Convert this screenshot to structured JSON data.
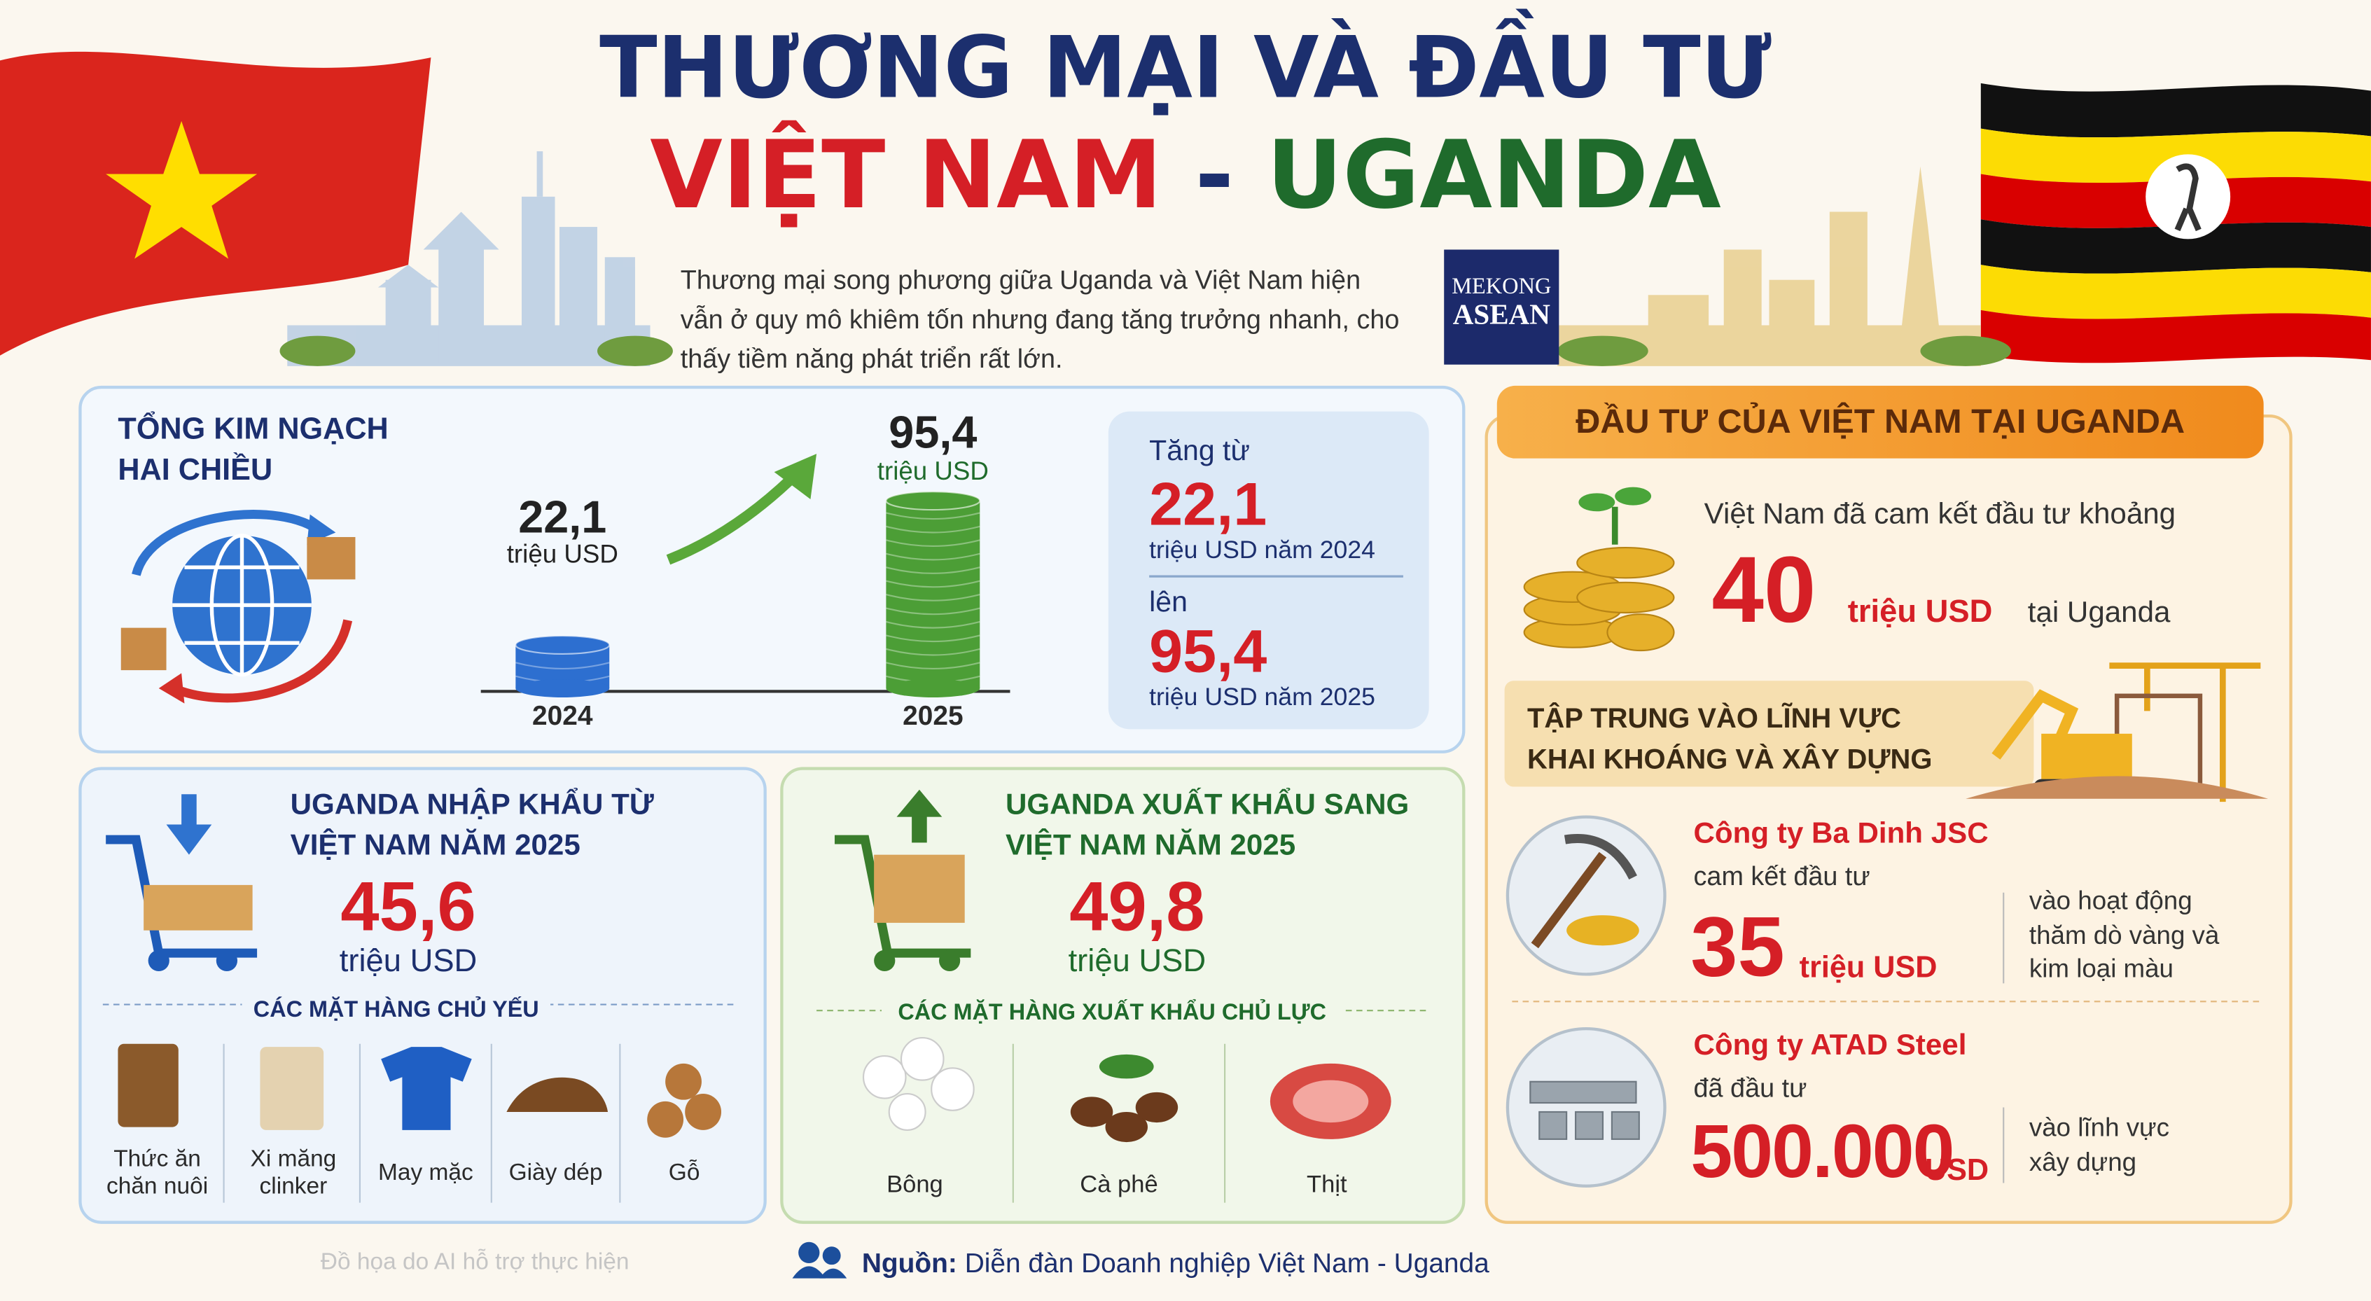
{
  "header": {
    "title_line1": "THƯƠNG MẠI VÀ ĐẦU TƯ",
    "title_vn": "VIỆT NAM",
    "title_sep": "-",
    "title_ug": "UGANDA",
    "intro": "Thương mại song phương giữa Uganda và Việt Nam hiện vẫn ở quy mô khiêm tốn nhưng đang tăng trưởng nhanh, cho thấy tiềm năng phát triển rất lớn.",
    "logo_top": "MEKONG",
    "logo_bottom": "ASEAN"
  },
  "total_trade": {
    "title": "TỔNG KIM NGẠCH HAI CHIỀU",
    "years": [
      "2024",
      "2025"
    ],
    "values": [
      22.1,
      95.4
    ],
    "value_labels": [
      "22,1",
      "95,4"
    ],
    "colors": [
      "#2d6fd0",
      "#4c9e36"
    ],
    "unit": "triệu USD",
    "summary": {
      "from_label": "Tăng từ",
      "from_value": "22,1",
      "from_unit": "triệu USD năm 2024",
      "to_label": "lên",
      "to_value": "95,4",
      "to_unit": "triệu USD năm 2025"
    }
  },
  "imports": {
    "title": "UGANDA NHẬP KHẨU TỪ VIỆT NAM NĂM 2025",
    "value": "45,6",
    "unit": "triệu USD",
    "items_title": "CÁC MẶT HÀNG CHỦ YẾU",
    "items": [
      "Thức ăn chăn nuôi",
      "Xi măng clinker",
      "May mặc",
      "Giày dép",
      "Gỗ"
    ]
  },
  "exports": {
    "title": "UGANDA XUẤT KHẨU SANG VIỆT NAM NĂM 2025",
    "value": "49,8",
    "unit": "triệu USD",
    "items_title": "CÁC MẶT HÀNG XUẤT KHẨU CHỦ LỰC",
    "items": [
      "Bông",
      "Cà phê",
      "Thịt"
    ]
  },
  "investment": {
    "title": "ĐẦU TƯ CỦA VIỆT NAM TẠI UGANDA",
    "commit_text": "Việt Nam đã cam kết đầu tư khoảng",
    "commit_value": "40",
    "commit_unit": "triệu USD",
    "commit_place": "tại Uganda",
    "focus": "TẬP TRUNG VÀO LĨNH VỰC KHAI KHOÁNG VÀ XÂY DỰNG",
    "companies": [
      {
        "name": "Công ty Ba Dinh JSC",
        "verb": "cam kết đầu tư",
        "value": "35",
        "unit": "triệu USD",
        "purpose": "vào hoạt động thăm dò vàng và kim loại màu"
      },
      {
        "name": "Công ty ATAD Steel",
        "verb": "đã đầu tư",
        "value": "500.000",
        "unit": "USD",
        "purpose": "vào lĩnh vực xây dựng"
      }
    ]
  },
  "footer": {
    "credit": "Đồ họa do AI hỗ trợ thực hiện",
    "source_label": "Nguồn:",
    "source": "Diễn đàn Doanh nghiệp Việt Nam - Uganda"
  }
}
